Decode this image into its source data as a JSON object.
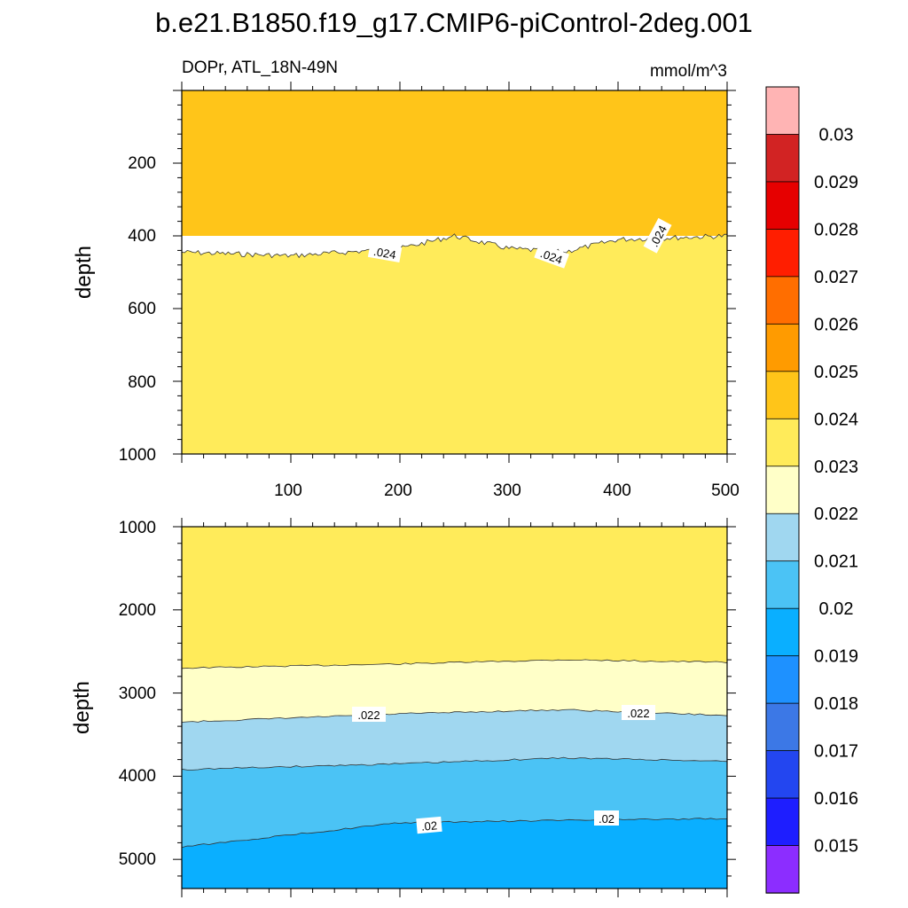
{
  "chart_data": [
    {
      "type": "contour",
      "title": "b.e21.B1850.f19_g17.CMIP6-piControl-2deg.001",
      "subtitle_left": "DOPr, ATL_18N-49N",
      "subtitle_right": "mmol/m^3",
      "xlabel": "",
      "ylabel": "depth",
      "xlim": [
        0,
        500
      ],
      "ylim": [
        1000,
        0
      ],
      "xticks": [
        100,
        200,
        300,
        400,
        500
      ],
      "xtick_labels": [
        "100",
        "200",
        "300",
        "400",
        "500"
      ],
      "yticks": [
        200,
        400,
        600,
        800,
        1000
      ],
      "ytick_labels": [
        "200",
        "400",
        "600",
        "800",
        "1000"
      ],
      "regions": [
        {
          "level": "0.024-0.025",
          "color": "#ffc519",
          "depth_range": [
            0,
            420
          ]
        },
        {
          "level": "0.023-0.024",
          "color": "#ffeb5a",
          "depth_range": [
            420,
            1000
          ]
        }
      ],
      "contours": [
        {
          "level": 0.024,
          "approx_depth_points": [
            [
              0,
              445
            ],
            [
              100,
              455
            ],
            [
              200,
              435
            ],
            [
              250,
              400
            ],
            [
              300,
              435
            ],
            [
              350,
              445
            ],
            [
              400,
              410
            ],
            [
              500,
              400
            ]
          ],
          "labels": [
            ".024",
            ".024",
            ".024"
          ]
        }
      ]
    },
    {
      "type": "contour",
      "xlabel": "",
      "ylabel": "depth",
      "xlim": [
        0,
        500
      ],
      "ylim": [
        5350,
        1000
      ],
      "yticks": [
        1000,
        2000,
        3000,
        4000,
        5000
      ],
      "ytick_labels": [
        "1000",
        "2000",
        "3000",
        "4000",
        "5000"
      ],
      "regions": [
        {
          "level": "0.023-0.024",
          "color": "#ffeb5a"
        },
        {
          "level": "0.022-0.023",
          "color": "#ffffc8"
        },
        {
          "level": "0.021-0.022",
          "color": "#a0d7f0"
        },
        {
          "level": "0.020-0.021",
          "color": "#4bc3f5"
        },
        {
          "level": "0.019-0.020",
          "color": "#0aafff"
        }
      ],
      "contours": [
        {
          "level": 0.023,
          "approx_depth_points": [
            [
              0,
              2700
            ],
            [
              200,
              2650
            ],
            [
              350,
              2600
            ],
            [
              500,
              2630
            ]
          ]
        },
        {
          "level": 0.022,
          "approx_depth_points": [
            [
              0,
              3350
            ],
            [
              200,
              3250
            ],
            [
              350,
              3200
            ],
            [
              500,
              3270
            ]
          ],
          "labels": [
            ".022",
            ".022"
          ]
        },
        {
          "level": 0.021,
          "approx_depth_points": [
            [
              0,
              3920
            ],
            [
              200,
              3850
            ],
            [
              350,
              3780
            ],
            [
              500,
              3820
            ]
          ]
        },
        {
          "level": 0.02,
          "approx_depth_points": [
            [
              0,
              4850
            ],
            [
              200,
              4560
            ],
            [
              350,
              4530
            ],
            [
              500,
              4510
            ]
          ],
          "labels": [
            ".02",
            ".02"
          ]
        }
      ]
    }
  ],
  "colorbar": {
    "labels": [
      "0.03",
      "0.029",
      "0.028",
      "0.027",
      "0.026",
      "0.025",
      "0.024",
      "0.023",
      "0.022",
      "0.021",
      "0.02",
      "0.019",
      "0.018",
      "0.017",
      "0.016",
      "0.015"
    ],
    "colors_top_to_bottom": [
      "#ffb4b4",
      "#d22323",
      "#e60000",
      "#ff1e00",
      "#ff6e00",
      "#ff9b00",
      "#ffc519",
      "#ffeb5a",
      "#ffffc8",
      "#a0d7f0",
      "#4bc3f5",
      "#0aafff",
      "#1e91ff",
      "#3c78e6",
      "#2346f0",
      "#1e1eff",
      "#8c2dff"
    ]
  }
}
